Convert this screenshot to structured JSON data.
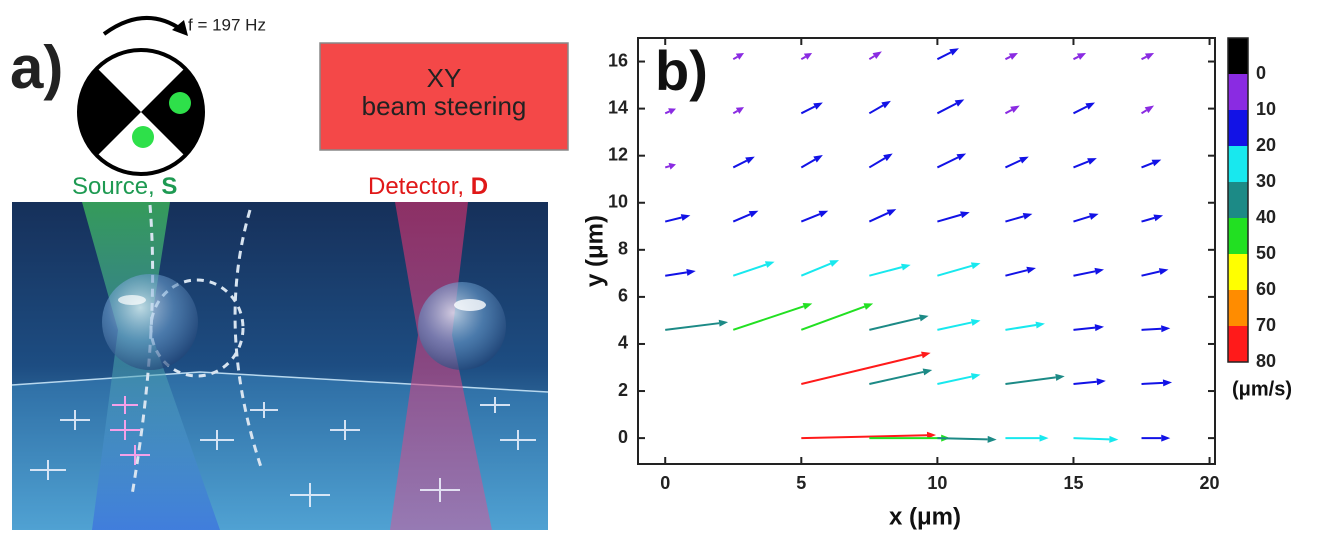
{
  "panel_a": {
    "label": "a)",
    "frequency": "f = 197 Hz",
    "box": [
      "XY",
      "beam steering"
    ],
    "source": "Source, ",
    "source_letter": "S",
    "detector": "Detector, ",
    "detector_letter": "D"
  },
  "chart_data": {
    "type": "quiver",
    "panel_label": "b)",
    "xlabel": "x (μm)",
    "ylabel": "y (μm)",
    "xlim": [
      -1,
      20.2
    ],
    "ylim": [
      -1.1,
      17
    ],
    "xticks": [
      0,
      5,
      10,
      15,
      20
    ],
    "yticks": [
      0,
      2,
      4,
      6,
      8,
      10,
      12,
      14,
      16
    ],
    "x": [
      5,
      7.5,
      10,
      12.5,
      15,
      17.5,
      5,
      7.5,
      10,
      12.5,
      15,
      17.5,
      0,
      2.5,
      5,
      7.5,
      10,
      12.5,
      15,
      17.5,
      0,
      2.5,
      5,
      7.5,
      10,
      12.5,
      15,
      17.5,
      0,
      2.5,
      5,
      7.5,
      10,
      12.5,
      15,
      17.5,
      0,
      2.5,
      5,
      7.5,
      10,
      12.5,
      15,
      17.5,
      0,
      2.5,
      5,
      7.5,
      10,
      12.5,
      15,
      17.5,
      2.5,
      5,
      7.5,
      10,
      12.5,
      15,
      17.5
    ],
    "y": [
      0,
      0,
      0,
      0,
      0,
      0,
      2.3,
      2.3,
      2.3,
      2.3,
      2.3,
      2.3,
      4.6,
      4.6,
      4.6,
      4.6,
      4.6,
      4.6,
      4.6,
      4.6,
      6.9,
      6.9,
      6.9,
      6.9,
      6.9,
      6.9,
      6.9,
      6.9,
      9.2,
      9.2,
      9.2,
      9.2,
      9.2,
      9.2,
      9.2,
      9.2,
      11.5,
      11.5,
      11.5,
      11.5,
      11.5,
      11.5,
      11.5,
      11.5,
      13.8,
      13.8,
      13.8,
      13.8,
      13.8,
      13.8,
      13.8,
      13.8,
      16.1,
      16.1,
      16.1,
      16.1,
      16.1,
      16.1,
      16.1
    ],
    "u": [
      75,
      45,
      33,
      24,
      25,
      16,
      72,
      35,
      24,
      33,
      18,
      17,
      35,
      44,
      40,
      33,
      24,
      22,
      17,
      16,
      17,
      23,
      21,
      23,
      24,
      17,
      17,
      15,
      14,
      14,
      15,
      15,
      18,
      15,
      14,
      12,
      6,
      12,
      12,
      13,
      16,
      13,
      13,
      11,
      6,
      6,
      12,
      12,
      15,
      8,
      12,
      7,
      6,
      6,
      7,
      12,
      7,
      7,
      7
    ],
    "v": [
      2,
      0,
      -1,
      0,
      -1,
      0,
      20,
      9,
      6,
      5,
      2,
      1,
      5,
      17,
      17,
      9,
      6,
      4,
      2,
      1,
      3,
      9,
      10,
      7,
      8,
      5,
      4,
      4,
      4,
      7,
      7,
      8,
      6,
      5,
      5,
      4,
      2,
      7,
      8,
      9,
      9,
      7,
      6,
      5,
      3,
      4,
      7,
      8,
      9,
      5,
      7,
      5,
      4,
      4,
      5,
      7,
      4,
      4,
      4
    ],
    "colorbar": {
      "ticks": [
        0,
        10,
        20,
        30,
        40,
        50,
        60,
        70,
        80
      ],
      "label": "(μm/s)",
      "colors": [
        "#000000",
        "#8a2be2",
        "#1212e6",
        "#18e8ee",
        "#1c8a86",
        "#22e022",
        "#ffff00",
        "#ff8c00",
        "#ff1a1a"
      ]
    }
  }
}
